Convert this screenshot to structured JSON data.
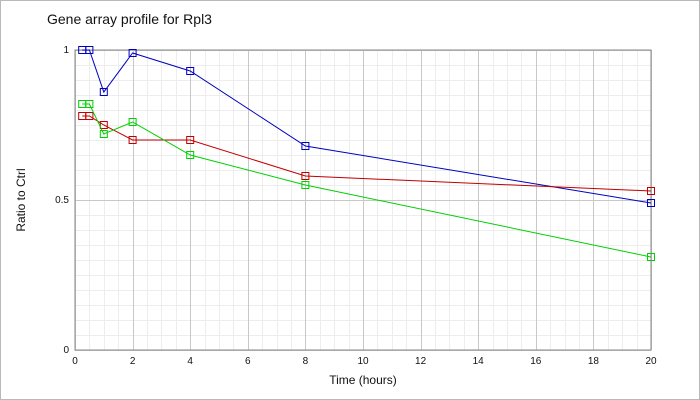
{
  "chart_data": {
    "type": "line",
    "title": "Gene array profile for Rpl3",
    "xlabel": "Time (hours)",
    "ylabel": "Ratio to Ctrl",
    "xlim": [
      0,
      20
    ],
    "ylim": [
      0,
      1
    ],
    "xticks": [
      0,
      2,
      4,
      6,
      8,
      10,
      12,
      14,
      16,
      18,
      20
    ],
    "yticks": [
      0,
      0.5,
      1
    ],
    "ytick_labels": [
      "0",
      "0.5",
      "1"
    ],
    "grid": true,
    "legend": "none",
    "marker": "square",
    "series": [
      {
        "color": "#0000c0",
        "x": [
          0.25,
          0.5,
          1,
          2,
          4,
          8,
          20
        ],
        "y": [
          1.0,
          1.0,
          0.86,
          0.99,
          0.93,
          0.68,
          0.49
        ]
      },
      {
        "color": "#c00000",
        "x": [
          0.25,
          0.5,
          1,
          2,
          4,
          8,
          20
        ],
        "y": [
          0.78,
          0.78,
          0.75,
          0.7,
          0.7,
          0.58,
          0.53
        ]
      },
      {
        "color": "#00d000",
        "x": [
          0.25,
          0.5,
          1,
          2,
          4,
          8,
          20
        ],
        "y": [
          0.82,
          0.82,
          0.72,
          0.76,
          0.65,
          0.55,
          0.31
        ]
      }
    ]
  }
}
